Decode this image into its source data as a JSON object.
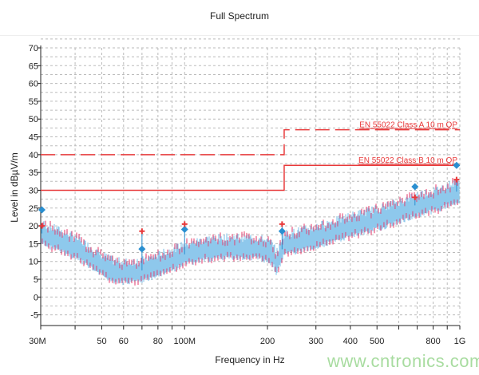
{
  "title": "Full Spectrum",
  "watermark": "www.cntronics.com",
  "chart_data": {
    "type": "line",
    "title": "Full Spectrum",
    "xlabel": "Frequency in Hz",
    "ylabel": "Level in dBµV/m",
    "xscale": "log",
    "xlim": [
      30,
      1000
    ],
    "ylim": [
      -8,
      70
    ],
    "grid": true,
    "yticks": [
      -5,
      0,
      5,
      10,
      15,
      20,
      25,
      30,
      35,
      40,
      45,
      50,
      55,
      60,
      65,
      70
    ],
    "xticks": [
      {
        "v": 30,
        "label": "30M"
      },
      {
        "v": 50,
        "label": "50"
      },
      {
        "v": 60,
        "label": "60"
      },
      {
        "v": 80,
        "label": "80"
      },
      {
        "v": 100,
        "label": "100M"
      },
      {
        "v": 200,
        "label": "200"
      },
      {
        "v": 300,
        "label": "300"
      },
      {
        "v": 400,
        "label": "400"
      },
      {
        "v": 500,
        "label": "500"
      },
      {
        "v": 800,
        "label": "800"
      },
      {
        "v": 1000,
        "label": "1G"
      }
    ],
    "limits": [
      {
        "name": "EN 55022 Class A 10 m QP",
        "style": "dashed",
        "color": "#e8393a",
        "points": [
          [
            30,
            40
          ],
          [
            230,
            40
          ],
          [
            230,
            47
          ],
          [
            1000,
            47
          ]
        ]
      },
      {
        "name": "EN 55022 Class B 10 m QP",
        "style": "solid",
        "color": "#e8393a",
        "points": [
          [
            30,
            30
          ],
          [
            230,
            30
          ],
          [
            230,
            37
          ],
          [
            1000,
            37
          ]
        ]
      }
    ],
    "spectrum": {
      "color": "#8ec9ec",
      "peak_color": "#e8396a",
      "x": [
        30,
        35,
        40,
        45,
        50,
        55,
        60,
        70,
        80,
        90,
        100,
        120,
        150,
        180,
        200,
        210,
        215,
        220,
        230,
        250,
        300,
        400,
        500,
        600,
        700,
        800,
        900,
        1000
      ],
      "y": [
        18,
        16,
        14,
        11.5,
        9,
        7.5,
        7,
        7.5,
        9,
        10.5,
        12,
        13.5,
        14,
        14,
        13,
        12,
        9.5,
        11,
        15,
        15.5,
        17,
        20,
        22,
        24,
        26,
        27,
        28.5,
        30
      ]
    },
    "qp_markers": {
      "color": "#2a8fd0",
      "x": [
        30.3,
        70,
        100,
        226,
        687,
        973
      ],
      "y": [
        24.5,
        13.5,
        19,
        18.5,
        31,
        37
      ]
    },
    "peak_markers": {
      "color": "#e8393a",
      "x": [
        30.3,
        70,
        100,
        226,
        687,
        973
      ],
      "y": [
        20,
        18.5,
        20.5,
        20.5,
        28,
        33
      ]
    }
  }
}
